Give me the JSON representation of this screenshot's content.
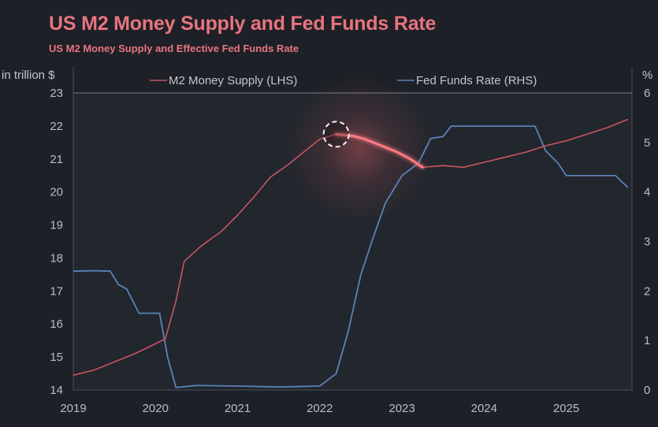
{
  "header": {
    "title": "US M2 Money Supply and Fed Funds Rate",
    "subtitle": "US M2 Money Supply and Effective Fed Funds Rate"
  },
  "colors": {
    "m2": "#c75560",
    "m2_highlight": "#ff7a82",
    "fed": "#5b82b8",
    "title": "#e8747f"
  },
  "chart_data": {
    "type": "line",
    "title": "US M2 Money Supply and Fed Funds Rate",
    "subtitle": "US M2 Money Supply and Effective Fed Funds Rate",
    "xlabel": "",
    "ylabel_left": "in trillion $",
    "ylabel_right": "%",
    "xlim": [
      2019,
      2025.8
    ],
    "ylim_left": [
      14,
      23
    ],
    "ylim_right": [
      0,
      6
    ],
    "x_ticks": [
      "2019",
      "2020",
      "2021",
      "2022",
      "2023",
      "2024",
      "2025"
    ],
    "y_ticks_left": [
      "14",
      "15",
      "16",
      "17",
      "18",
      "19",
      "20",
      "21",
      "22",
      "23"
    ],
    "y_ticks_right": [
      "0",
      "1",
      "2",
      "3",
      "4",
      "5",
      "6"
    ],
    "legend_position": "top",
    "series": [
      {
        "name": "M2 Money Supply (LHS)",
        "axis": "left",
        "points": [
          [
            2019.0,
            14.45
          ],
          [
            2019.25,
            14.6
          ],
          [
            2019.5,
            14.85
          ],
          [
            2019.75,
            15.1
          ],
          [
            2020.0,
            15.4
          ],
          [
            2020.12,
            15.55
          ],
          [
            2020.25,
            16.7
          ],
          [
            2020.35,
            17.9
          ],
          [
            2020.55,
            18.35
          ],
          [
            2020.8,
            18.8
          ],
          [
            2021.0,
            19.3
          ],
          [
            2021.2,
            19.85
          ],
          [
            2021.4,
            20.45
          ],
          [
            2021.6,
            20.8
          ],
          [
            2021.8,
            21.2
          ],
          [
            2022.0,
            21.6
          ],
          [
            2022.2,
            21.75
          ],
          [
            2022.4,
            21.7
          ],
          [
            2022.55,
            21.6
          ],
          [
            2022.75,
            21.4
          ],
          [
            2022.95,
            21.2
          ],
          [
            2023.1,
            21.0
          ],
          [
            2023.25,
            20.75
          ],
          [
            2023.5,
            20.8
          ],
          [
            2023.75,
            20.75
          ],
          [
            2024.0,
            20.9
          ],
          [
            2024.25,
            21.05
          ],
          [
            2024.5,
            21.2
          ],
          [
            2024.75,
            21.4
          ],
          [
            2025.0,
            21.55
          ],
          [
            2025.25,
            21.75
          ],
          [
            2025.5,
            21.95
          ],
          [
            2025.75,
            22.2
          ]
        ]
      },
      {
        "name": "Fed Funds Rate (RHS)",
        "axis": "right",
        "points": [
          [
            2019.0,
            2.4
          ],
          [
            2019.25,
            2.41
          ],
          [
            2019.45,
            2.4
          ],
          [
            2019.55,
            2.13
          ],
          [
            2019.65,
            2.04
          ],
          [
            2019.8,
            1.55
          ],
          [
            2020.05,
            1.55
          ],
          [
            2020.15,
            0.65
          ],
          [
            2020.25,
            0.05
          ],
          [
            2020.5,
            0.09
          ],
          [
            2021.0,
            0.08
          ],
          [
            2021.5,
            0.06
          ],
          [
            2022.0,
            0.08
          ],
          [
            2022.2,
            0.33
          ],
          [
            2022.35,
            1.21
          ],
          [
            2022.5,
            2.33
          ],
          [
            2022.65,
            3.08
          ],
          [
            2022.8,
            3.78
          ],
          [
            2023.0,
            4.33
          ],
          [
            2023.2,
            4.58
          ],
          [
            2023.35,
            5.08
          ],
          [
            2023.5,
            5.12
          ],
          [
            2023.6,
            5.33
          ],
          [
            2024.0,
            5.33
          ],
          [
            2024.62,
            5.33
          ],
          [
            2024.75,
            4.83
          ],
          [
            2024.9,
            4.58
          ],
          [
            2025.0,
            4.33
          ],
          [
            2025.6,
            4.33
          ],
          [
            2025.75,
            4.09
          ]
        ]
      }
    ],
    "highlight": {
      "series": "M2 Money Supply (LHS)",
      "x_range": [
        2022.2,
        2023.28
      ],
      "marker_x": 2022.2
    }
  }
}
